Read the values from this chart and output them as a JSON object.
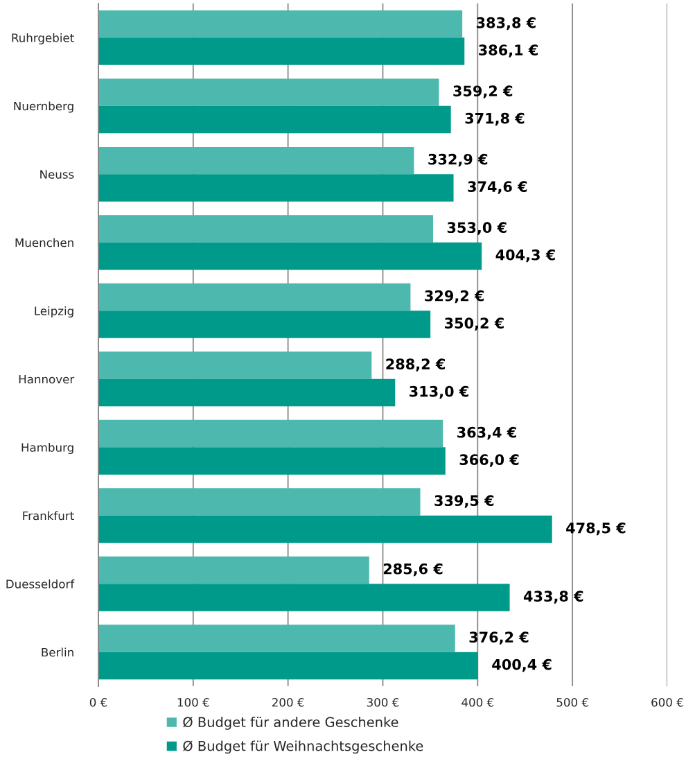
{
  "chart_data": {
    "type": "bar",
    "orientation": "horizontal",
    "categories": [
      "Ruhrgebiet",
      "Nuernberg",
      "Neuss",
      "Muenchen",
      "Leipzig",
      "Hannover",
      "Hamburg",
      "Frankfurt",
      "Duesseldorf",
      "Berlin"
    ],
    "series": [
      {
        "name": "Ø Budget für andere Geschenke",
        "color": "#4db8ad",
        "values": [
          383.8,
          359.2,
          332.9,
          353.0,
          329.2,
          288.2,
          363.4,
          339.5,
          285.6,
          376.2
        ],
        "value_labels": [
          "383,8 €",
          "359,2 €",
          "332,9 €",
          "353,0 €",
          "329,2 €",
          "288,2 €",
          "363,4 €",
          "339,5 €",
          "285,6 €",
          "376,2 €"
        ]
      },
      {
        "name": "Ø Budget für Weihnachtsgeschenke",
        "color": "#009a8a",
        "values": [
          386.1,
          371.8,
          374.6,
          404.3,
          350.2,
          313.0,
          366.0,
          478.5,
          433.8,
          400.4
        ],
        "value_labels": [
          "386,1 €",
          "371,8 €",
          "374,6 €",
          "404,3 €",
          "350,2 €",
          "313,0 €",
          "366,0 €",
          "478,5 €",
          "433,8 €",
          "400,4 €"
        ]
      }
    ],
    "xlim": [
      0,
      600
    ],
    "xticks": [
      {
        "value": 0,
        "label": "0 €"
      },
      {
        "value": 100,
        "label": "100 €"
      },
      {
        "value": 200,
        "label": "200 €"
      },
      {
        "value": 300,
        "label": "300 €"
      },
      {
        "value": 400,
        "label": "400 €"
      },
      {
        "value": 500,
        "label": "500 €"
      },
      {
        "value": 600,
        "label": "600 €"
      }
    ],
    "grid": "x",
    "legend": "bottom"
  }
}
